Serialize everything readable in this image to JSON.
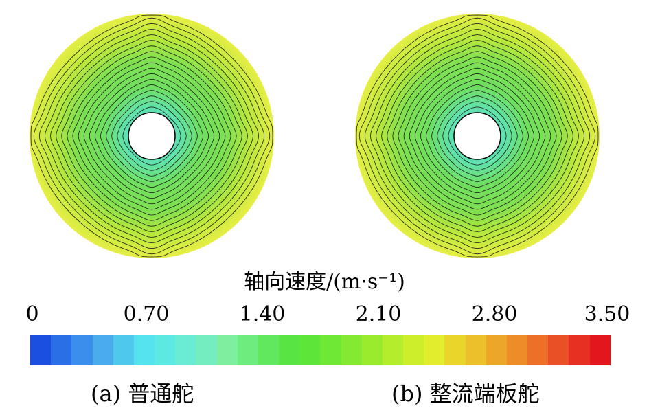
{
  "figure": {
    "colorbar": {
      "title": "轴向速度/(m·s⁻¹)",
      "ticks": [
        "0",
        "0.70",
        "1.40",
        "2.10",
        "2.80",
        "3.50"
      ],
      "min": 0,
      "max": 3.5,
      "colors": [
        "#1a4fe0",
        "#2a6fe6",
        "#3b8fec",
        "#4aaced",
        "#4fc8ee",
        "#55e3ef",
        "#5ee8e2",
        "#6aebd3",
        "#74edc1",
        "#7def9f",
        "#6eec7d",
        "#62e85e",
        "#58e443",
        "#5ee53a",
        "#6ee735",
        "#84e931",
        "#9aeb2e",
        "#b4ed2b",
        "#cdee2a",
        "#e2ed2b",
        "#ead62a",
        "#ecc02a",
        "#eca62a",
        "#ed8c29",
        "#ec7028",
        "#ea5026",
        "#e73022",
        "#e2161c"
      ]
    },
    "panels": [
      {
        "caption": "(a) 普通舵",
        "outer_color": "#e6ee45",
        "mid_color": "#7fe050",
        "inner_color": "#5de6cc",
        "wake_lobes": "diagonal"
      },
      {
        "caption": "(b) 整流端板舵",
        "outer_color": "#e6ee45",
        "mid_color": "#7fe050",
        "inner_color": "#5de6cc",
        "wake_lobes": "diagonal-reduced"
      }
    ]
  }
}
